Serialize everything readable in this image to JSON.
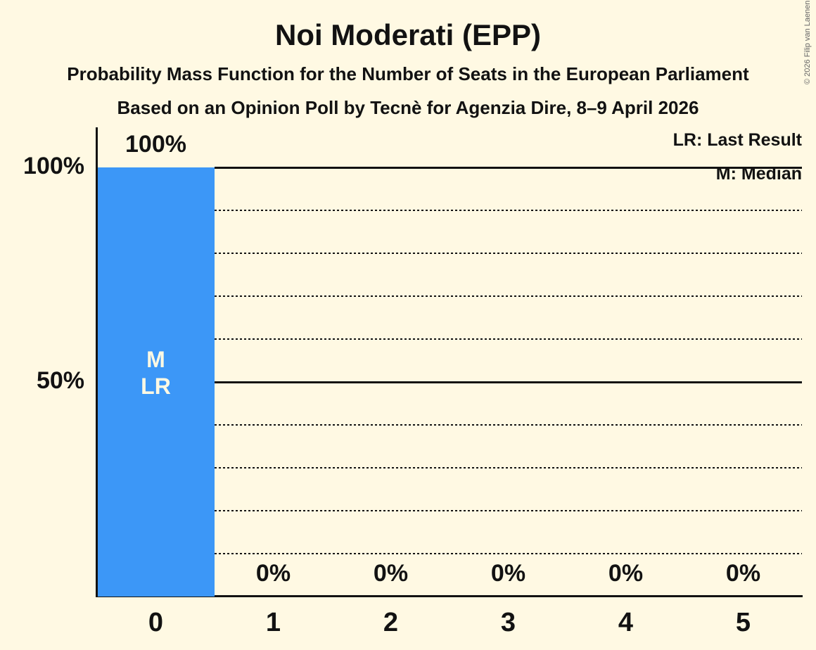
{
  "header": {
    "title": "Noi Moderati (EPP)",
    "subtitle1": "Probability Mass Function for the Number of Seats in the European Parliament",
    "subtitle2": "Based on an Opinion Poll by Tecnè for Agenzia Dire, 8–9 April 2026"
  },
  "legend": {
    "lr": "LR: Last Result",
    "m": "M: Median"
  },
  "copyright": "© 2026 Filip van Laenen",
  "chart_data": {
    "type": "bar",
    "title": "Noi Moderati (EPP)",
    "categories": [
      "0",
      "1",
      "2",
      "3",
      "4",
      "5"
    ],
    "values": [
      100,
      0,
      0,
      0,
      0,
      0
    ],
    "value_labels": [
      "100%",
      "0%",
      "0%",
      "0%",
      "0%",
      "0%"
    ],
    "bar_annotations": [
      {
        "category_index": 0,
        "lines": [
          "M",
          "LR"
        ]
      }
    ],
    "y_axis_ticks": [
      {
        "level": 100,
        "label": "100%"
      },
      {
        "level": 50,
        "label": "50%"
      }
    ],
    "gridlines": {
      "solid_levels": [
        100,
        50
      ],
      "dotted_levels": [
        90,
        80,
        70,
        60,
        40,
        30,
        20,
        10
      ]
    },
    "ylim": [
      0,
      100
    ],
    "legend_position": "top-right",
    "colors": {
      "bar": "#3C97F7",
      "background": "#FFF9E3",
      "text": "#121212",
      "line": "#121212",
      "bar_label": "#FFF9E3",
      "copyright": "#666666"
    }
  }
}
